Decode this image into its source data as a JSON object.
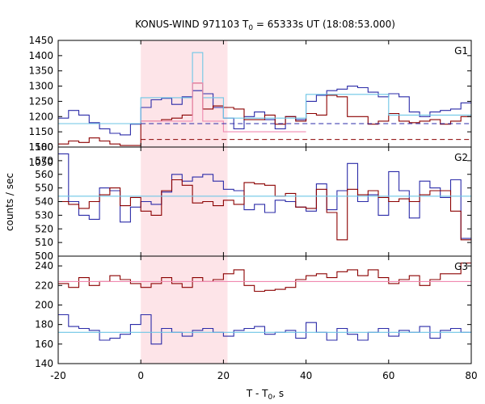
{
  "chart_data": {
    "type": "line",
    "title_main": "KONUS-WIND 971103 T",
    "title_sub": "0",
    "title_rest": " = 65333s UT (18:08:53.000)",
    "xlabel_main": "T - T",
    "xlabel_sub": "0",
    "xlabel_rest": ", s",
    "ylabel": "counts / sec",
    "xlim": [
      -20,
      80
    ],
    "xticks": [
      -20,
      0,
      20,
      40,
      60,
      80
    ],
    "shaded_interval": [
      0,
      21
    ],
    "colors": {
      "blue": "#2b2ba8",
      "red": "#8b0000",
      "cyan": "#6ec6e6",
      "pink": "#f08ab0",
      "shade": "#fde4e8"
    },
    "panels": [
      {
        "name": "G1",
        "ylim": [
          1100,
          1450
        ],
        "yticks": [
          1100,
          1150,
          1200,
          1250,
          1300,
          1350,
          1400,
          1450
        ],
        "yticks_extra": [
          1050
        ],
        "x_edges": [
          -20,
          -17.5,
          -15,
          -12.5,
          -10,
          -7.5,
          -5,
          -2.5,
          0,
          2.5,
          5,
          7.5,
          10,
          12.5,
          15,
          17.5,
          20,
          22.5,
          25,
          27.5,
          30,
          32.5,
          35,
          37.5,
          40,
          42.5,
          45,
          47.5,
          50,
          52.5,
          55,
          57.5,
          60,
          62.5,
          65,
          67.5,
          70,
          72.5,
          75,
          77.5,
          80
        ],
        "series": [
          {
            "color": "blue",
            "values": [
              1195,
              1220,
              1205,
              1180,
              1160,
              1145,
              1140,
              1175,
              1230,
              1255,
              1260,
              1240,
              1265,
              1285,
              1275,
              1230,
              1195,
              1160,
              1200,
              1215,
              1190,
              1160,
              1200,
              1190,
              1250,
              1270,
              1285,
              1290,
              1300,
              1295,
              1280,
              1265,
              1275,
              1265,
              1215,
              1200,
              1215,
              1220,
              1225,
              1245
            ]
          },
          {
            "color": "red",
            "values": [
              1110,
              1120,
              1115,
              1130,
              1120,
              1110,
              1105,
              1105,
              1185,
              1185,
              1190,
              1195,
              1205,
              1310,
              1225,
              1235,
              1230,
              1225,
              1190,
              1190,
              1205,
              1175,
              1200,
              1185,
              1210,
              1205,
              1270,
              1265,
              1200,
              1200,
              1175,
              1185,
              1210,
              1185,
              1180,
              1185,
              1190,
              1175,
              1185,
              1200
            ]
          },
          {
            "color": "cyan",
            "values": [
              1177,
              1177,
              1177,
              1177,
              1177,
              1177,
              1177,
              1177,
              1262,
              1262,
              1262,
              1262,
              1262,
              1410,
              1262,
              1262,
              1195,
              1195,
              1195,
              1195,
              1195,
              1195,
              1195,
              1195,
              1273,
              1273,
              1273,
              1273,
              1273,
              1273,
              1273,
              1273,
              1205,
              1205,
              1205,
              1205,
              1205,
              1205,
              1205,
              1205
            ]
          },
          {
            "color": "pink",
            "values": [
              null,
              null,
              null,
              null,
              null,
              null,
              null,
              null,
              1185,
              1185,
              1185,
              1185,
              1185,
              1310,
              1185,
              1185,
              1150,
              1150,
              1150,
              1150,
              1150,
              1150,
              1150,
              1150,
              null,
              null,
              null,
              null,
              null,
              null,
              null,
              null,
              null,
              null,
              null,
              null,
              null,
              null,
              null,
              null
            ]
          }
        ],
        "hlines": [
          {
            "color": "blue",
            "value": 1177,
            "dashed": true,
            "from": 0
          },
          {
            "color": "red",
            "value": 1125,
            "dashed": true,
            "from": 0
          }
        ]
      },
      {
        "name": "G2",
        "ylim": [
          500,
          580
        ],
        "yticks": [
          500,
          510,
          520,
          530,
          540,
          550,
          560,
          570,
          580
        ],
        "x_edges": [
          -20,
          -17.5,
          -15,
          -12.5,
          -10,
          -7.5,
          -5,
          -2.5,
          0,
          2.5,
          5,
          7.5,
          10,
          12.5,
          15,
          17.5,
          20,
          22.5,
          25,
          27.5,
          30,
          32.5,
          35,
          37.5,
          40,
          42.5,
          45,
          47.5,
          50,
          52.5,
          55,
          57.5,
          60,
          62.5,
          65,
          67.5,
          70,
          72.5,
          75,
          77.5,
          80
        ],
        "series": [
          {
            "color": "blue",
            "values": [
              575,
              540,
              530,
              527,
              550,
              548,
              525,
              536,
              540,
              538,
              547,
              560,
              555,
              558,
              560,
              555,
              549,
              548,
              534,
              538,
              532,
              541,
              540,
              536,
              533,
              553,
              534,
              548,
              568,
              540,
              545,
              530,
              562,
              548,
              528,
              555,
              550,
              543,
              556,
              513
            ]
          },
          {
            "color": "red",
            "values": [
              540,
              538,
              535,
              540,
              545,
              550,
              537,
              543,
              533,
              530,
              548,
              556,
              552,
              539,
              540,
              537,
              541,
              538,
              554,
              553,
              552,
              544,
              546,
              536,
              535,
              549,
              532,
              512,
              549,
              545,
              548,
              543,
              540,
              542,
              540,
              545,
              548,
              548,
              533,
              512
            ]
          },
          {
            "color": "cyan",
            "values": [
              544,
              544,
              544,
              544,
              544,
              544,
              544,
              544,
              544,
              544,
              544,
              544,
              544,
              544,
              544,
              544,
              544,
              544,
              544,
              544,
              544,
              544,
              544,
              544,
              544,
              544,
              544,
              544,
              544,
              544,
              544,
              544,
              544,
              544,
              544,
              544,
              544,
              544,
              544,
              544
            ]
          }
        ]
      },
      {
        "name": "G3",
        "ylim": [
          140,
          250
        ],
        "yticks": [
          140,
          160,
          180,
          200,
          220,
          240
        ],
        "x_edges": [
          -20,
          -17.5,
          -15,
          -12.5,
          -10,
          -7.5,
          -5,
          -2.5,
          0,
          2.5,
          5,
          7.5,
          10,
          12.5,
          15,
          17.5,
          20,
          22.5,
          25,
          27.5,
          30,
          32.5,
          35,
          37.5,
          40,
          42.5,
          45,
          47.5,
          50,
          52.5,
          55,
          57.5,
          60,
          62.5,
          65,
          67.5,
          70,
          72.5,
          75,
          77.5,
          80
        ],
        "series": [
          {
            "color": "red",
            "values": [
              222,
              218,
              228,
              220,
              224,
              230,
              226,
              222,
              218,
              222,
              228,
              222,
              218,
              228,
              224,
              226,
              232,
              236,
              220,
              214,
              215,
              216,
              218,
              226,
              230,
              232,
              228,
              234,
              236,
              230,
              236,
              228,
              222,
              226,
              230,
              220,
              226,
              232,
              232,
              243
            ]
          },
          {
            "color": "blue",
            "values": [
              190,
              178,
              176,
              174,
              164,
              166,
              170,
              180,
              190,
              160,
              176,
              172,
              168,
              174,
              176,
              172,
              168,
              174,
              176,
              178,
              170,
              172,
              174,
              166,
              182,
              172,
              164,
              176,
              170,
              164,
              172,
              176,
              168,
              174,
              172,
              178,
              166,
              174,
              176,
              172
            ]
          },
          {
            "color": "pink",
            "values": [
              224,
              224,
              224,
              224,
              224,
              224,
              224,
              224,
              224,
              224,
              224,
              224,
              224,
              224,
              224,
              224,
              224,
              224,
              224,
              224,
              224,
              224,
              224,
              224,
              224,
              224,
              224,
              224,
              224,
              224,
              224,
              224,
              224,
              224,
              224,
              224,
              224,
              224,
              224,
              224
            ]
          },
          {
            "color": "cyan",
            "values": [
              172,
              172,
              172,
              172,
              172,
              172,
              172,
              172,
              172,
              172,
              172,
              172,
              172,
              172,
              172,
              172,
              172,
              172,
              172,
              172,
              172,
              172,
              172,
              172,
              172,
              172,
              172,
              172,
              172,
              172,
              172,
              172,
              172,
              172,
              172,
              172,
              172,
              172,
              172,
              172
            ]
          }
        ]
      }
    ]
  }
}
